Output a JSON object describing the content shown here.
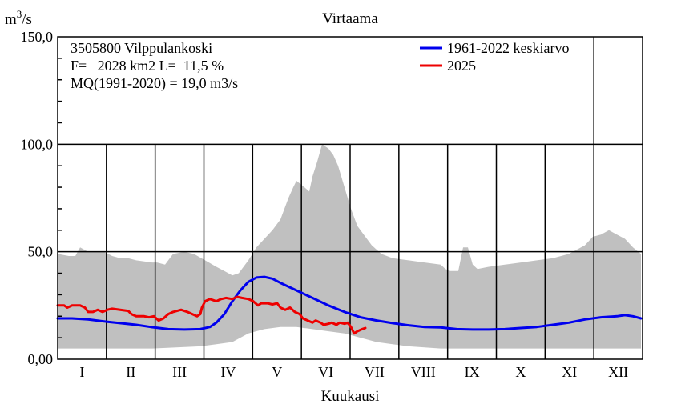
{
  "chart_data": {
    "type": "area",
    "title": "Virtaama",
    "ylabel": "m3/s",
    "ylabel_base": "m",
    "ylabel_sup": "3",
    "ylabel_tail": "/s",
    "xlabel": "Kuukausi",
    "ylim": [
      0,
      150
    ],
    "yticks": [
      {
        "value": 0,
        "label": "0,00"
      },
      {
        "value": 50,
        "label": "50,0"
      },
      {
        "value": 100,
        "label": "100,0"
      },
      {
        "value": 150,
        "label": "150,0"
      }
    ],
    "months": [
      "I",
      "II",
      "III",
      "IV",
      "V",
      "VI",
      "VII",
      "VIII",
      "IX",
      "X",
      "XI",
      "XII"
    ],
    "info": [
      "3505800 Vilppulankoski",
      "F=   2028 km2 L=  11,5 %",
      "MQ(1991-2020) = 19,0 m3/s"
    ],
    "legend": [
      {
        "name": "1961-2022 keskiarvo",
        "color": "#0000ee"
      },
      {
        "name": "2025",
        "color": "#ee0000"
      }
    ],
    "range_color": "#c0c0c0",
    "range_upper": [
      [
        1,
        49
      ],
      [
        8,
        48
      ],
      [
        12,
        48
      ],
      [
        15,
        52
      ],
      [
        20,
        50
      ],
      [
        30,
        50
      ],
      [
        35,
        48
      ],
      [
        40,
        47
      ],
      [
        45,
        47
      ],
      [
        50,
        46
      ],
      [
        60,
        45
      ],
      [
        63,
        45
      ],
      [
        68,
        44
      ],
      [
        73,
        49
      ],
      [
        80,
        50
      ],
      [
        86,
        49
      ],
      [
        93,
        46
      ],
      [
        100,
        43
      ],
      [
        105,
        41
      ],
      [
        110,
        39
      ],
      [
        114,
        40
      ],
      [
        120,
        46
      ],
      [
        125,
        52
      ],
      [
        130,
        56
      ],
      [
        135,
        60
      ],
      [
        140,
        65
      ],
      [
        145,
        75
      ],
      [
        148,
        80
      ],
      [
        150,
        83
      ],
      [
        155,
        80
      ],
      [
        158,
        78
      ],
      [
        160,
        85
      ],
      [
        163,
        92
      ],
      [
        166,
        100
      ],
      [
        170,
        98
      ],
      [
        173,
        95
      ],
      [
        176,
        90
      ],
      [
        180,
        80
      ],
      [
        184,
        70
      ],
      [
        188,
        62
      ],
      [
        192,
        58
      ],
      [
        197,
        53
      ],
      [
        203,
        49
      ],
      [
        210,
        47
      ],
      [
        220,
        46
      ],
      [
        230,
        45
      ],
      [
        240,
        44
      ],
      [
        243,
        42
      ],
      [
        246,
        41
      ],
      [
        251,
        41
      ],
      [
        254,
        52
      ],
      [
        257,
        52
      ],
      [
        260,
        44
      ],
      [
        263,
        42
      ],
      [
        270,
        43
      ],
      [
        280,
        44
      ],
      [
        290,
        45
      ],
      [
        300,
        46
      ],
      [
        310,
        47
      ],
      [
        320,
        49
      ],
      [
        330,
        53
      ],
      [
        335,
        57
      ],
      [
        340,
        58
      ],
      [
        345,
        60
      ],
      [
        350,
        58
      ],
      [
        355,
        56
      ],
      [
        360,
        52
      ],
      [
        365,
        49
      ]
    ],
    "range_lower": [
      [
        1,
        5
      ],
      [
        30,
        5
      ],
      [
        60,
        5
      ],
      [
        90,
        6
      ],
      [
        100,
        7
      ],
      [
        110,
        8
      ],
      [
        115,
        10
      ],
      [
        120,
        12
      ],
      [
        130,
        14
      ],
      [
        140,
        15
      ],
      [
        150,
        15
      ],
      [
        160,
        14
      ],
      [
        170,
        13
      ],
      [
        180,
        12
      ],
      [
        190,
        10
      ],
      [
        200,
        8
      ],
      [
        210,
        7
      ],
      [
        220,
        6
      ],
      [
        240,
        5
      ],
      [
        270,
        5
      ],
      [
        300,
        5
      ],
      [
        330,
        5
      ],
      [
        365,
        5
      ]
    ],
    "series": [
      {
        "name": "1961-2022 keskiarvo",
        "color": "#0000ee",
        "points": [
          [
            1,
            19
          ],
          [
            10,
            19
          ],
          [
            20,
            18.5
          ],
          [
            31,
            17.5
          ],
          [
            40,
            16.8
          ],
          [
            50,
            16
          ],
          [
            59,
            15
          ],
          [
            70,
            14
          ],
          [
            80,
            13.8
          ],
          [
            90,
            14
          ],
          [
            96,
            15
          ],
          [
            100,
            17
          ],
          [
            105,
            21
          ],
          [
            110,
            27
          ],
          [
            115,
            32
          ],
          [
            120,
            36
          ],
          [
            125,
            38
          ],
          [
            130,
            38.3
          ],
          [
            135,
            37.5
          ],
          [
            140,
            35.5
          ],
          [
            150,
            32
          ],
          [
            160,
            28.5
          ],
          [
            170,
            25
          ],
          [
            180,
            22
          ],
          [
            190,
            19.5
          ],
          [
            200,
            18
          ],
          [
            210,
            16.8
          ],
          [
            220,
            15.8
          ],
          [
            230,
            15
          ],
          [
            240,
            14.8
          ],
          [
            250,
            14
          ],
          [
            260,
            13.8
          ],
          [
            270,
            13.8
          ],
          [
            280,
            14
          ],
          [
            290,
            14.5
          ],
          [
            300,
            15
          ],
          [
            310,
            16
          ],
          [
            320,
            17
          ],
          [
            330,
            18.5
          ],
          [
            340,
            19.5
          ],
          [
            350,
            20
          ],
          [
            355,
            20.5
          ],
          [
            360,
            20
          ],
          [
            365,
            19
          ]
        ]
      },
      {
        "name": "2025",
        "color": "#ee0000",
        "points": [
          [
            1,
            25
          ],
          [
            5,
            25
          ],
          [
            7,
            24
          ],
          [
            10,
            25
          ],
          [
            15,
            25
          ],
          [
            18,
            24
          ],
          [
            20,
            22
          ],
          [
            23,
            22
          ],
          [
            26,
            23
          ],
          [
            29,
            22
          ],
          [
            32,
            23
          ],
          [
            35,
            23.5
          ],
          [
            40,
            23
          ],
          [
            45,
            22.5
          ],
          [
            47,
            21
          ],
          [
            50,
            20
          ],
          [
            55,
            20
          ],
          [
            58,
            19.5
          ],
          [
            61,
            20
          ],
          [
            64,
            18
          ],
          [
            67,
            19
          ],
          [
            70,
            21
          ],
          [
            73,
            22
          ],
          [
            78,
            23
          ],
          [
            82,
            22
          ],
          [
            85,
            21
          ],
          [
            88,
            20
          ],
          [
            90,
            21
          ],
          [
            91,
            24
          ],
          [
            93,
            27
          ],
          [
            96,
            28
          ],
          [
            100,
            27
          ],
          [
            103,
            28
          ],
          [
            106,
            28.5
          ],
          [
            110,
            28
          ],
          [
            113,
            29
          ],
          [
            116,
            28.5
          ],
          [
            120,
            28
          ],
          [
            123,
            27
          ],
          [
            126,
            25
          ],
          [
            128,
            26
          ],
          [
            132,
            26
          ],
          [
            135,
            25.5
          ],
          [
            138,
            26
          ],
          [
            140,
            24
          ],
          [
            143,
            23
          ],
          [
            146,
            24
          ],
          [
            149,
            22
          ],
          [
            152,
            21
          ],
          [
            154,
            19
          ],
          [
            157,
            18
          ],
          [
            160,
            17
          ],
          [
            162,
            18
          ],
          [
            165,
            17
          ],
          [
            167,
            16
          ],
          [
            170,
            16.5
          ],
          [
            172,
            17
          ],
          [
            175,
            16
          ],
          [
            177,
            17
          ],
          [
            180,
            16.5
          ],
          [
            182,
            17
          ],
          [
            184,
            15
          ],
          [
            186,
            12
          ],
          [
            188,
            13
          ],
          [
            191,
            14
          ],
          [
            193,
            14.5
          ]
        ]
      }
    ]
  }
}
